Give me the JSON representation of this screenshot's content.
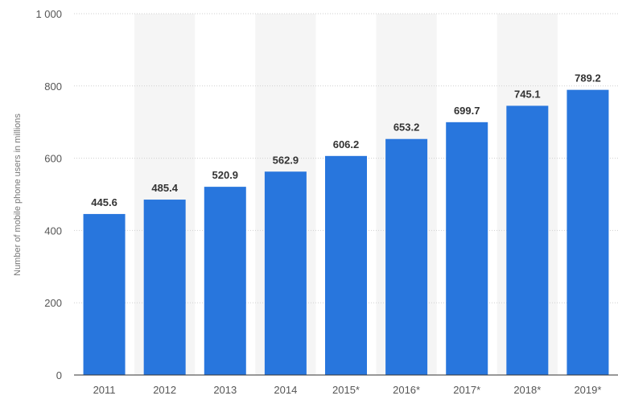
{
  "chart_data": {
    "type": "bar",
    "categories": [
      "2011",
      "2012",
      "2013",
      "2014",
      "2015*",
      "2016*",
      "2017*",
      "2018*",
      "2019*"
    ],
    "values": [
      445.6,
      485.4,
      520.9,
      562.9,
      606.2,
      653.2,
      699.7,
      745.1,
      789.2
    ],
    "value_labels": [
      "445.6",
      "485.4",
      "520.9",
      "562.9",
      "606.2",
      "653.2",
      "699.7",
      "745.1",
      "789.2"
    ],
    "title": "",
    "xlabel": "",
    "ylabel": "Number of mobile phone users in millions",
    "ylim": [
      0,
      1000
    ],
    "yticks": [
      0,
      200,
      400,
      600,
      800,
      1000
    ],
    "ytick_labels": [
      "0",
      "200",
      "400",
      "600",
      "800",
      "1 000"
    ],
    "grid": true,
    "legend": "none",
    "bar_color": "#2876dd",
    "band_color": "#f5f5f5"
  }
}
